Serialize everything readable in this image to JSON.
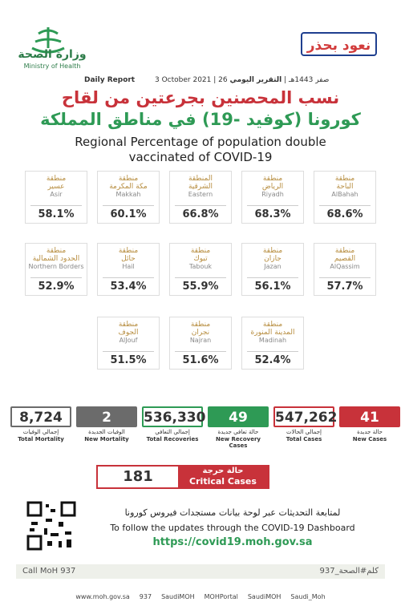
{
  "header": {
    "ministry_ar": "وزارة الصحة",
    "ministry_en": "Ministry of Health",
    "badge": "نعود بحذر",
    "report_en": "Daily Report",
    "date_en": "3 October 2021",
    "date_hijri": "26 صفر 1443هـ",
    "report_ar": "التقرير اليومي"
  },
  "title": {
    "ar_line1": "نسب المحصنين بجرعتين من لقاح",
    "ar_line2": "كورونا (كوفيد -19) في مناطق المملكة",
    "en_line1": "Regional Percentage of population double",
    "en_line2": "vaccinated of COVID-19"
  },
  "regions": [
    [
      {
        "prefix_ar": "منطقة",
        "name_ar": "الباحة",
        "name_en": "AlBahah",
        "value": "68.6%"
      },
      {
        "prefix_ar": "منطقة",
        "name_ar": "الرياض",
        "name_en": "Riyadh",
        "value": "68.3%"
      },
      {
        "prefix_ar": "المنطقة",
        "name_ar": "الشرقية",
        "name_en": "Eastern",
        "value": "66.8%"
      },
      {
        "prefix_ar": "منطقة",
        "name_ar": "مكة المكرمة",
        "name_en": "Makkah",
        "value": "60.1%"
      },
      {
        "prefix_ar": "منطقة",
        "name_ar": "عسير",
        "name_en": "Asir",
        "value": "58.1%"
      }
    ],
    [
      {
        "prefix_ar": "منطقة",
        "name_ar": "القصيم",
        "name_en": "AlQassim",
        "value": "57.7%"
      },
      {
        "prefix_ar": "منطقة",
        "name_ar": "جازان",
        "name_en": "Jazan",
        "value": "56.1%"
      },
      {
        "prefix_ar": "منطقة",
        "name_ar": "تبوك",
        "name_en": "Tabouk",
        "value": "55.9%"
      },
      {
        "prefix_ar": "منطقة",
        "name_ar": "حائل",
        "name_en": "Hail",
        "value": "53.4%"
      },
      {
        "prefix_ar": "منطقة",
        "name_ar": "الحدود الشمالية",
        "name_en": "Northern Borders",
        "value": "52.9%"
      }
    ],
    [
      {
        "prefix_ar": "منطقة",
        "name_ar": "المدينة المنورة",
        "name_en": "Madinah",
        "value": "52.4%"
      },
      {
        "prefix_ar": "منطقة",
        "name_ar": "نجران",
        "name_en": "Najran",
        "value": "51.6%"
      },
      {
        "prefix_ar": "منطقة",
        "name_ar": "الجوف",
        "name_en": "AlJouf",
        "value": "51.5%"
      }
    ]
  ],
  "stats": [
    {
      "value": "41",
      "label_ar": "حالة جديدة",
      "label_en": "New Cases",
      "color": "#c8323a",
      "filled": true
    },
    {
      "value": "547,262",
      "label_ar": "إجمالي الحالات",
      "label_en": "Total Cases",
      "color": "#c8323a",
      "filled": false
    },
    {
      "value": "49",
      "label_ar": "حالة تعافي جديدة",
      "label_en": "New Recovery Cases",
      "color": "#2e9a55",
      "filled": true
    },
    {
      "value": "536,330",
      "label_ar": "إجمالي التعافي",
      "label_en": "Total Recoveries",
      "color": "#2e9a55",
      "filled": false
    },
    {
      "value": "2",
      "label_ar": "الوفيات الجديدة",
      "label_en": "New Mortality",
      "color": "#6b6b6b",
      "filled": true
    },
    {
      "value": "8,724",
      "label_ar": "إجمالي الوفيات",
      "label_en": "Total Mortality",
      "color": "#6b6b6b",
      "filled": false
    }
  ],
  "critical": {
    "value": "181",
    "label_ar": "حالة حرجة",
    "label_en": "Critical Cases"
  },
  "dashboard": {
    "ar": "لمتابعة التحديثات عبر لوحة بيانات مستجدات فيروس كورونا",
    "en": "To follow the updates through the COVID-19 Dashboard",
    "url": "https://covid19.moh.gov.sa"
  },
  "footer": {
    "call": "Call MoH 937",
    "hashtag": "كلم#الصحة_937",
    "links": [
      "www.moh.gov.sa",
      "937",
      "SaudiMOH",
      "MOHPortal",
      "SaudiMOH",
      "Saudi_Moh"
    ]
  }
}
